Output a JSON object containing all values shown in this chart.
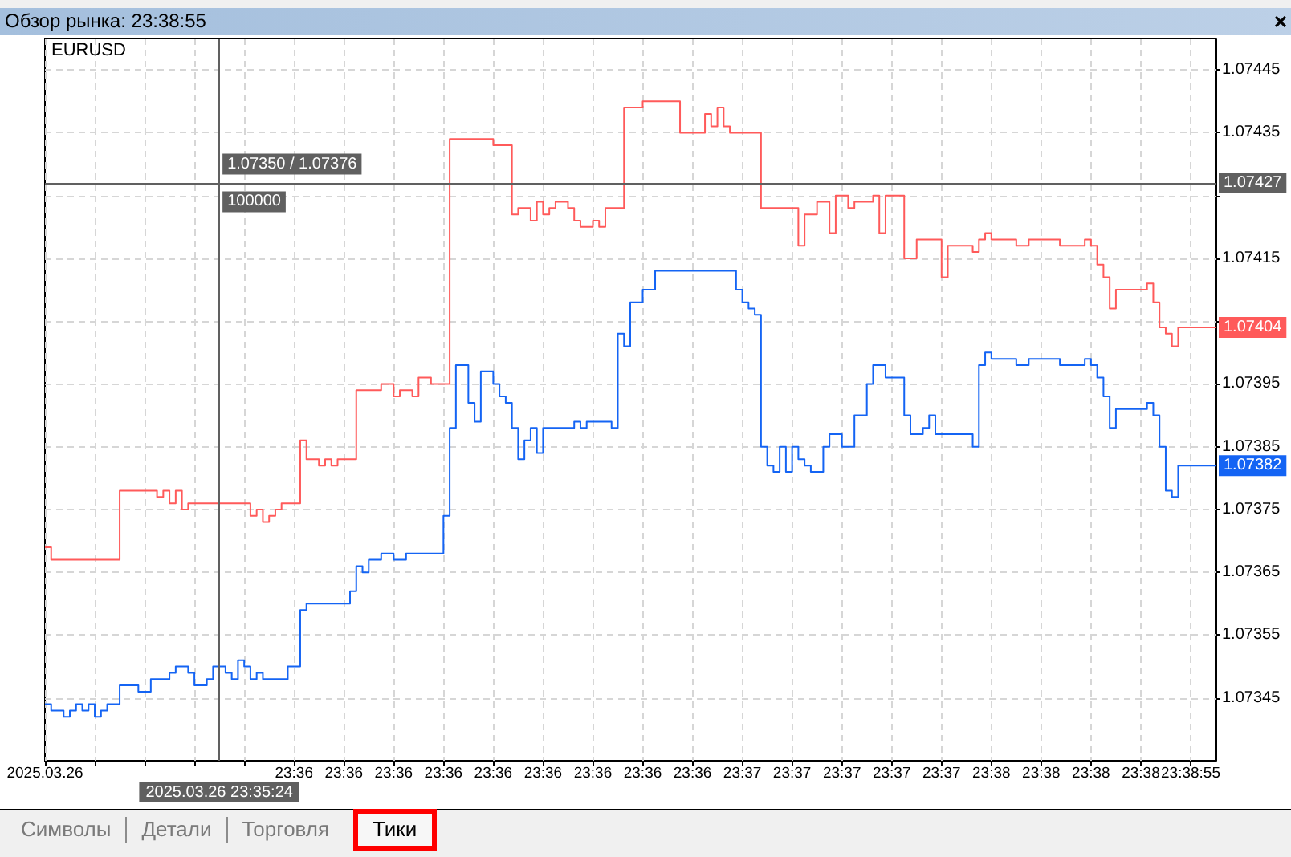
{
  "chart_data": {
    "type": "step",
    "title": "Обзор рынка: 23:38:55",
    "subtitle": "EURUSD",
    "categories": [
      "2025.03.26",
      null,
      null,
      null,
      null,
      null,
      null,
      null,
      null,
      null,
      null,
      null,
      null,
      null,
      null,
      null,
      null,
      null,
      null,
      null,
      null,
      null,
      null,
      null,
      null,
      null,
      null,
      null,
      "2025.03.26 23:35:24",
      null,
      null,
      null,
      null,
      null,
      null,
      null,
      null,
      null,
      null,
      null,
      "23:36",
      null,
      null,
      null,
      null,
      null,
      null,
      null,
      "23:36",
      null,
      null,
      null,
      null,
      null,
      null,
      null,
      "23:36",
      null,
      null,
      null,
      null,
      null,
      null,
      null,
      "23:36",
      null,
      null,
      null,
      null,
      null,
      null,
      null,
      "23:36",
      null,
      null,
      null,
      null,
      null,
      null,
      null,
      "23:36",
      null,
      null,
      null,
      null,
      null,
      null,
      null,
      "23:36",
      null,
      null,
      null,
      null,
      null,
      null,
      null,
      "23:36",
      null,
      null,
      null,
      null,
      null,
      null,
      null,
      "23:36",
      null,
      null,
      null,
      null,
      null,
      null,
      null,
      "23:37",
      null,
      null,
      null,
      null,
      null,
      null,
      null,
      "23:37",
      null,
      null,
      null,
      null,
      null,
      null,
      null,
      "23:37",
      null,
      null,
      null,
      null,
      null,
      null,
      null,
      "23:37",
      null,
      null,
      null,
      null,
      null,
      null,
      null,
      "23:37",
      null,
      null,
      null,
      null,
      null,
      null,
      null,
      "23:38",
      null,
      null,
      null,
      null,
      null,
      null,
      null,
      "23:38",
      null,
      null,
      null,
      null,
      null,
      null,
      null,
      "23:38",
      null,
      null,
      null,
      null,
      null,
      null,
      null,
      "23:38",
      null,
      null,
      null,
      null,
      null,
      null,
      null,
      "23:38:55",
      null,
      null,
      null,
      null
    ],
    "ylim": [
      1.07335,
      1.0745
    ],
    "yticks": [
      1.07345,
      1.07355,
      1.07365,
      1.07375,
      1.07385,
      1.07395,
      {
        "value": 1.07405,
        "label": null
      },
      1.07415,
      {
        "value": 1.07425,
        "label": null
      },
      1.07435,
      1.07445
    ],
    "grid": true,
    "marker": "none",
    "series": [
      {
        "color": "#ff5a5a",
        "values": [
          1.07369,
          1.07367,
          1.07367,
          1.07367,
          1.07367,
          1.07367,
          1.07367,
          1.07367,
          1.07367,
          1.07367,
          1.07367,
          1.07367,
          1.07378,
          1.07378,
          1.07378,
          1.07378,
          1.07378,
          1.07378,
          1.07377,
          1.07378,
          1.07376,
          1.07378,
          1.07375,
          1.07376,
          1.07376,
          1.07376,
          1.07376,
          1.07376,
          1.07376,
          1.07376,
          1.07376,
          1.07376,
          1.07376,
          1.07374,
          1.07375,
          1.07373,
          1.07374,
          1.07375,
          1.07376,
          1.07376,
          1.07376,
          1.07386,
          1.07383,
          1.07383,
          1.07382,
          1.07383,
          1.07382,
          1.07383,
          1.07383,
          1.07383,
          1.07394,
          1.07394,
          1.07394,
          1.07394,
          1.07395,
          1.07395,
          1.07393,
          1.07394,
          1.07394,
          1.07393,
          1.07396,
          1.07396,
          1.07395,
          1.07395,
          1.07395,
          1.07434,
          1.07434,
          1.07434,
          1.07434,
          1.07434,
          1.07434,
          1.07434,
          1.07433,
          1.07433,
          1.07433,
          1.07422,
          1.07423,
          1.07423,
          1.07421,
          1.07424,
          1.07422,
          1.07423,
          1.07424,
          1.07424,
          1.07423,
          1.07421,
          1.0742,
          1.0742,
          1.07421,
          1.0742,
          1.07423,
          1.07423,
          1.07423,
          1.07439,
          1.07439,
          1.07439,
          1.0744,
          1.0744,
          1.0744,
          1.0744,
          1.0744,
          1.0744,
          1.07435,
          1.07435,
          1.07435,
          1.07435,
          1.07438,
          1.07436,
          1.07439,
          1.07436,
          1.07435,
          1.07435,
          1.07435,
          1.07435,
          1.07435,
          1.07423,
          1.07423,
          1.07423,
          1.07423,
          1.07423,
          1.07423,
          1.07417,
          1.07422,
          1.07422,
          1.07424,
          1.07424,
          1.07419,
          1.07425,
          1.07425,
          1.07423,
          1.07424,
          1.07424,
          1.07424,
          1.07425,
          1.07419,
          1.07425,
          1.07425,
          1.07425,
          1.07415,
          1.07415,
          1.07418,
          1.07418,
          1.07418,
          1.07418,
          1.07412,
          1.07417,
          1.07417,
          1.07417,
          1.07417,
          1.07416,
          1.07418,
          1.07419,
          1.07418,
          1.07418,
          1.07418,
          1.07418,
          1.07417,
          1.07417,
          1.07418,
          1.07418,
          1.07418,
          1.07418,
          1.07418,
          1.07417,
          1.07417,
          1.07417,
          1.07417,
          1.07418,
          1.07417,
          1.07414,
          1.07412,
          1.07407,
          1.0741,
          1.0741,
          1.0741,
          1.0741,
          1.0741,
          1.07411,
          1.07408,
          1.07404,
          1.07403,
          1.07401,
          1.07404,
          1.07404,
          1.07404,
          1.07404,
          1.07404,
          1.07404,
          1.07404
        ],
        "value_labels": [
          null,
          null,
          null,
          null,
          null,
          null,
          null,
          null,
          null,
          null,
          null,
          null,
          null,
          null,
          null,
          null,
          null,
          null,
          null,
          null,
          null,
          null,
          null,
          null,
          null,
          null,
          null,
          null,
          null,
          null,
          null,
          null,
          null,
          null,
          null,
          null,
          null,
          null,
          null,
          null,
          null,
          null,
          null,
          null,
          null,
          null,
          null,
          null,
          null,
          null,
          null,
          null,
          null,
          null,
          null,
          null,
          null,
          null,
          null,
          null,
          null,
          null,
          null,
          null,
          null,
          null,
          null,
          null,
          null,
          null,
          null,
          null,
          null,
          null,
          null,
          null,
          null,
          null,
          null,
          null,
          null,
          null,
          null,
          null,
          null,
          null,
          null,
          null,
          null,
          null,
          null,
          null,
          null,
          null,
          null,
          null,
          null,
          null,
          null,
          null,
          null,
          null,
          null,
          null,
          null,
          null,
          null,
          null,
          null,
          null,
          null,
          null,
          null,
          null,
          null,
          null,
          null,
          null,
          null,
          null,
          null,
          null,
          null,
          null,
          null,
          null,
          null,
          null,
          null,
          null,
          null,
          null,
          null,
          null,
          null,
          null,
          null,
          null,
          null,
          null,
          null,
          null,
          null,
          null,
          null,
          null,
          null,
          null,
          null,
          null,
          null,
          null,
          null,
          null,
          null,
          null,
          null,
          null,
          null,
          null,
          null,
          null,
          null,
          null,
          null,
          null,
          null,
          null,
          null,
          null,
          null,
          null,
          null,
          null,
          null,
          null,
          null,
          null,
          null,
          null,
          null,
          null,
          null,
          null,
          null,
          null,
          null,
          null,
          "1.07404"
        ]
      },
      {
        "color": "#1464f4",
        "values": [
          1.07344,
          1.07343,
          1.07343,
          1.07342,
          1.07343,
          1.07344,
          1.07343,
          1.07344,
          1.07342,
          1.07343,
          1.07344,
          1.07344,
          1.07347,
          1.07347,
          1.07347,
          1.07346,
          1.07346,
          1.07348,
          1.07348,
          1.07348,
          1.07349,
          1.0735,
          1.0735,
          1.07349,
          1.07347,
          1.07347,
          1.07348,
          1.0735,
          1.0735,
          1.07349,
          1.07348,
          1.07351,
          1.0735,
          1.07348,
          1.07349,
          1.07348,
          1.07348,
          1.07348,
          1.07348,
          1.0735,
          1.0735,
          1.07359,
          1.0736,
          1.0736,
          1.0736,
          1.0736,
          1.0736,
          1.0736,
          1.0736,
          1.07362,
          1.07366,
          1.07365,
          1.07367,
          1.07367,
          1.07368,
          1.07368,
          1.07367,
          1.07367,
          1.07368,
          1.07368,
          1.07368,
          1.07368,
          1.07368,
          1.07368,
          1.07374,
          1.07388,
          1.07398,
          1.07398,
          1.07392,
          1.07389,
          1.07397,
          1.07397,
          1.07395,
          1.07393,
          1.07392,
          1.07388,
          1.07383,
          1.07386,
          1.07388,
          1.07384,
          1.07388,
          1.07388,
          1.07388,
          1.07388,
          1.07388,
          1.07389,
          1.07388,
          1.07389,
          1.07389,
          1.07389,
          1.07389,
          1.07388,
          1.07403,
          1.07401,
          1.07408,
          1.07408,
          1.0741,
          1.0741,
          1.07413,
          1.07413,
          1.07413,
          1.07413,
          1.07413,
          1.07413,
          1.07413,
          1.07413,
          1.07413,
          1.07413,
          1.07413,
          1.07413,
          1.07413,
          1.0741,
          1.07408,
          1.07407,
          1.07406,
          1.07385,
          1.07382,
          1.07381,
          1.07385,
          1.07381,
          1.07385,
          1.07383,
          1.07382,
          1.07381,
          1.07381,
          1.07385,
          1.07387,
          1.07387,
          1.07385,
          1.07385,
          1.0739,
          1.0739,
          1.07395,
          1.07398,
          1.07398,
          1.07396,
          1.07396,
          1.07396,
          1.0739,
          1.07387,
          1.07387,
          1.07388,
          1.0739,
          1.07387,
          1.07387,
          1.07387,
          1.07387,
          1.07387,
          1.07387,
          1.07385,
          1.07398,
          1.074,
          1.07399,
          1.07399,
          1.07399,
          1.07399,
          1.07398,
          1.07398,
          1.07399,
          1.07399,
          1.07399,
          1.07399,
          1.07399,
          1.07398,
          1.07398,
          1.07398,
          1.07398,
          1.07399,
          1.07398,
          1.07396,
          1.07393,
          1.07388,
          1.07391,
          1.07391,
          1.07391,
          1.07391,
          1.07391,
          1.07392,
          1.0739,
          1.07385,
          1.07378,
          1.07377,
          1.07382,
          1.07382,
          1.07382,
          1.07382,
          1.07382,
          1.07382,
          1.07382
        ],
        "value_labels": [
          null,
          null,
          null,
          null,
          null,
          null,
          null,
          null,
          null,
          null,
          null,
          null,
          null,
          null,
          null,
          null,
          null,
          null,
          null,
          null,
          null,
          null,
          null,
          null,
          null,
          null,
          null,
          null,
          null,
          null,
          null,
          null,
          null,
          null,
          null,
          null,
          null,
          null,
          null,
          null,
          null,
          null,
          null,
          null,
          null,
          null,
          null,
          null,
          null,
          null,
          null,
          null,
          null,
          null,
          null,
          null,
          null,
          null,
          null,
          null,
          null,
          null,
          null,
          null,
          null,
          null,
          null,
          null,
          null,
          null,
          null,
          null,
          null,
          null,
          null,
          null,
          null,
          null,
          null,
          null,
          null,
          null,
          null,
          null,
          null,
          null,
          null,
          null,
          null,
          null,
          null,
          null,
          null,
          null,
          null,
          null,
          null,
          null,
          null,
          null,
          null,
          null,
          null,
          null,
          null,
          null,
          null,
          null,
          null,
          null,
          null,
          null,
          null,
          null,
          null,
          null,
          null,
          null,
          null,
          null,
          null,
          null,
          null,
          null,
          null,
          null,
          null,
          null,
          null,
          null,
          null,
          null,
          null,
          null,
          null,
          null,
          null,
          null,
          null,
          null,
          null,
          null,
          null,
          null,
          null,
          null,
          null,
          null,
          null,
          null,
          null,
          null,
          null,
          null,
          null,
          null,
          null,
          null,
          null,
          null,
          null,
          null,
          null,
          null,
          null,
          null,
          null,
          null,
          null,
          null,
          null,
          null,
          null,
          null,
          null,
          null,
          null,
          null,
          null,
          null,
          null,
          null,
          null,
          null,
          null,
          null,
          null,
          null,
          "1.07382"
        ]
      }
    ],
    "ref_lines": [
      {
        "axis": "y",
        "value": 1.07427,
        "label": "1.07427",
        "color": "#606060"
      },
      {
        "axis": "x",
        "value": "2025.03.26 23:35:24",
        "color": "#606060"
      }
    ],
    "annotations": [
      {
        "text": "1.07350 / 1.07376",
        "x": "2025.03.26 23:35:24",
        "y": 1.0743
      },
      {
        "text": "100000",
        "x": "2025.03.26 23:35:24",
        "y": 1.07424
      },
      "Символы",
      "Детали",
      "Торговля",
      "Тики"
    ]
  }
}
